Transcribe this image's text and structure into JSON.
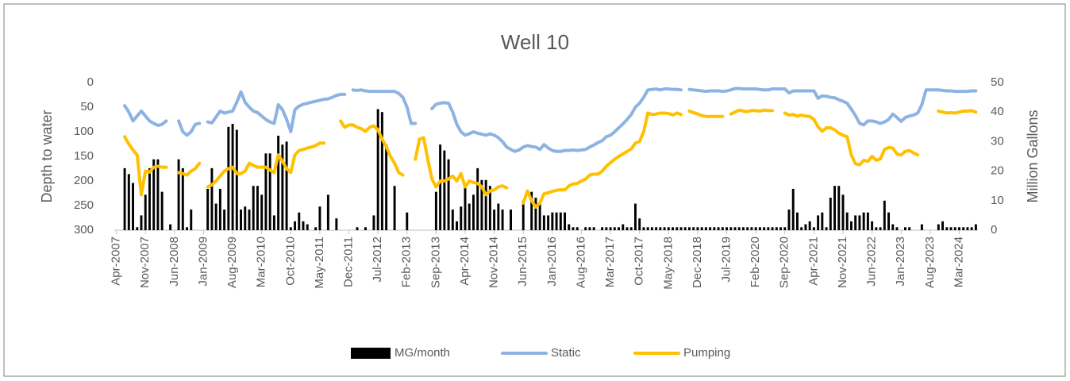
{
  "chart_data": {
    "type": "combo",
    "title": "Well 10",
    "y_label": "Depth to water",
    "y2_label": "Million Gallons",
    "ylim": [
      0,
      300
    ],
    "yticks": [
      0,
      50,
      100,
      150,
      200,
      250,
      300
    ],
    "y_inverted": true,
    "y2lim": [
      0,
      50
    ],
    "y2ticks": [
      0,
      10,
      20,
      30,
      40,
      50
    ],
    "grid": false,
    "legend": "bottom",
    "categories": [
      "Apr-2007",
      null,
      null,
      null,
      null,
      null,
      null,
      "Nov-2007",
      null,
      null,
      null,
      null,
      null,
      null,
      "Jun-2008",
      null,
      null,
      null,
      null,
      null,
      null,
      "Jan-2009",
      null,
      null,
      null,
      null,
      null,
      null,
      "Aug-2009",
      null,
      null,
      null,
      null,
      null,
      null,
      "Mar-2010",
      null,
      null,
      null,
      null,
      null,
      null,
      "Oct-2010",
      null,
      null,
      null,
      null,
      null,
      null,
      "May-2011",
      null,
      null,
      null,
      null,
      null,
      null,
      "Dec-2011",
      null,
      null,
      null,
      null,
      null,
      null,
      "Jul-2012",
      null,
      null,
      null,
      null,
      null,
      null,
      "Feb-2013",
      null,
      null,
      null,
      null,
      null,
      null,
      "Sep-2013",
      null,
      null,
      null,
      null,
      null,
      null,
      "Apr-2014",
      null,
      null,
      null,
      null,
      null,
      null,
      "Nov-2014",
      null,
      null,
      null,
      null,
      null,
      null,
      "Jun-2015",
      null,
      null,
      null,
      null,
      null,
      null,
      "Jan-2016",
      null,
      null,
      null,
      null,
      null,
      null,
      "Aug-2016",
      null,
      null,
      null,
      null,
      null,
      null,
      "Mar-2017",
      null,
      null,
      null,
      null,
      null,
      null,
      "Oct-2017",
      null,
      null,
      null,
      null,
      null,
      null,
      "May-2018",
      null,
      null,
      null,
      null,
      null,
      null,
      "Dec-2018",
      null,
      null,
      null,
      null,
      null,
      null,
      "Jul-2019",
      null,
      null,
      null,
      null,
      null,
      null,
      "Feb-2020",
      null,
      null,
      null,
      null,
      null,
      null,
      "Sep-2020",
      null,
      null,
      null,
      null,
      null,
      null,
      "Apr-2021",
      null,
      null,
      null,
      null,
      null,
      null,
      "Nov-2021",
      null,
      null,
      null,
      null,
      null,
      null,
      "Jun-2022",
      null,
      null,
      null,
      null,
      null,
      null,
      "Jan-2023",
      null,
      null,
      null,
      null,
      null,
      null,
      "Aug-2023",
      null,
      null,
      null,
      null,
      null,
      null,
      "Mar-2024",
      null,
      null,
      null,
      null
    ],
    "series": [
      {
        "name": "MG/month",
        "type": "bar",
        "axis": "y2",
        "color": "#000000",
        "values": [
          0,
          0,
          21,
          19,
          16,
          1,
          5,
          12,
          21,
          24,
          24,
          13,
          0,
          2,
          0,
          24,
          21,
          1,
          7,
          0,
          0,
          0,
          14,
          21,
          9,
          14,
          7,
          35,
          36,
          34,
          7,
          8,
          7,
          15,
          15,
          12,
          26,
          26,
          5,
          32,
          29,
          30,
          1,
          3,
          6,
          3,
          2,
          0,
          1,
          8,
          0,
          12,
          0,
          4,
          0,
          0,
          0,
          0,
          1,
          0,
          1,
          0,
          5,
          41,
          40,
          29,
          0,
          15,
          0,
          0,
          6,
          0,
          0,
          0,
          0,
          0,
          0,
          13,
          29,
          27,
          24,
          7,
          3,
          8,
          15,
          9,
          12,
          21,
          17,
          17,
          15,
          7,
          9,
          7,
          0,
          7,
          0,
          0,
          10,
          0,
          13,
          11,
          9,
          5,
          5,
          6,
          6,
          6,
          6,
          2,
          1,
          1,
          0,
          1,
          1,
          1,
          0,
          1,
          1,
          1,
          1,
          1,
          2,
          1,
          1,
          9,
          4,
          1,
          1,
          1,
          1,
          1,
          1,
          1,
          1,
          1,
          1,
          1,
          1,
          1,
          1,
          1,
          1,
          1,
          1,
          1,
          1,
          1,
          1,
          1,
          1,
          1,
          1,
          1,
          1,
          1,
          1,
          1,
          1,
          1,
          1,
          1,
          7,
          14,
          6,
          1,
          2,
          3,
          1,
          5,
          6,
          1,
          11,
          15,
          15,
          12,
          6,
          3,
          5,
          5,
          6,
          6,
          3,
          1,
          1,
          10,
          6,
          2,
          1,
          0,
          1,
          1,
          0,
          0,
          2,
          0,
          0,
          0,
          2,
          3,
          1,
          1,
          1,
          1,
          1,
          1,
          1,
          2
        ]
      },
      {
        "name": "Static",
        "type": "line",
        "color": "#8db3e2",
        "values": [
          null,
          null,
          47,
          60,
          78,
          68,
          58,
          68,
          78,
          83,
          87,
          85,
          78,
          null,
          null,
          78,
          100,
          107,
          100,
          85,
          83,
          null,
          80,
          82,
          70,
          58,
          62,
          60,
          58,
          40,
          19,
          40,
          50,
          58,
          61,
          68,
          75,
          80,
          83,
          45,
          55,
          75,
          100,
          55,
          48,
          44,
          42,
          40,
          38,
          36,
          34,
          33,
          30,
          26,
          24,
          24,
          null,
          15,
          16,
          15,
          17,
          18,
          18,
          18,
          18,
          18,
          18,
          18,
          22,
          30,
          50,
          83,
          83,
          null,
          null,
          null,
          53,
          44,
          42,
          41,
          42,
          60,
          85,
          100,
          107,
          104,
          100,
          103,
          105,
          107,
          104,
          107,
          112,
          120,
          131,
          136,
          140,
          137,
          131,
          128,
          130,
          131,
          136,
          126,
          133,
          138,
          140,
          140,
          138,
          138,
          137,
          138,
          137,
          136,
          131,
          127,
          122,
          118,
          110,
          107,
          100,
          92,
          84,
          75,
          65,
          50,
          42,
          30,
          15,
          14,
          13,
          15,
          13,
          13,
          14,
          14,
          15,
          null,
          14,
          15,
          16,
          17,
          18,
          17,
          17,
          17,
          18,
          17,
          15,
          12,
          12,
          13,
          13,
          13,
          13,
          14,
          15,
          15,
          13,
          13,
          13,
          13,
          21,
          17,
          17,
          17,
          17,
          17,
          17,
          32,
          27,
          28,
          30,
          31,
          35,
          38,
          42,
          54,
          67,
          83,
          86,
          78,
          78,
          80,
          83,
          80,
          75,
          64,
          71,
          79,
          71,
          68,
          66,
          62,
          45,
          15,
          15,
          15,
          15,
          16,
          17,
          17,
          18,
          18,
          18,
          18,
          17,
          17
        ]
      },
      {
        "name": "Pumping",
        "type": "line",
        "color": "#ffc000",
        "values": [
          null,
          null,
          110,
          125,
          137,
          147,
          228,
          180,
          182,
          172,
          170,
          172,
          172,
          null,
          null,
          183,
          185,
          188,
          180,
          175,
          164,
          null,
          212,
          208,
          200,
          190,
          180,
          175,
          172,
          185,
          185,
          180,
          164,
          168,
          172,
          172,
          172,
          178,
          183,
          147,
          160,
          175,
          183,
          147,
          138,
          136,
          133,
          131,
          128,
          123,
          123,
          null,
          null,
          null,
          78,
          91,
          86,
          86,
          91,
          94,
          99,
          91,
          88,
          96,
          115,
          130,
          150,
          164,
          183,
          188,
          null,
          null,
          156,
          115,
          112,
          156,
          196,
          212,
          200,
          200,
          196,
          190,
          200,
          185,
          212,
          200,
          203,
          205,
          212,
          228,
          220,
          218,
          212,
          210,
          214,
          null,
          null,
          null,
          245,
          220,
          240,
          253,
          245,
          226,
          224,
          221,
          219,
          218,
          218,
          210,
          206,
          205,
          200,
          196,
          188,
          186,
          186,
          180,
          170,
          163,
          156,
          150,
          145,
          140,
          135,
          123,
          120,
          100,
          62,
          65,
          64,
          62,
          62,
          63,
          66,
          62,
          65,
          null,
          58,
          61,
          64,
          67,
          69,
          69,
          69,
          69,
          69,
          null,
          64,
          60,
          56,
          58,
          59,
          57,
          57,
          58,
          56,
          57,
          57,
          null,
          null,
          62,
          66,
          65,
          68,
          66,
          68,
          69,
          75,
          90,
          99,
          92,
          92,
          96,
          103,
          107,
          110,
          147,
          165,
          167,
          158,
          160,
          150,
          158,
          155,
          136,
          132,
          133,
          145,
          147,
          140,
          138,
          143,
          147,
          null,
          null,
          null,
          null,
          58,
          60,
          62,
          61,
          62,
          60,
          58,
          58,
          57,
          60
        ]
      }
    ]
  }
}
